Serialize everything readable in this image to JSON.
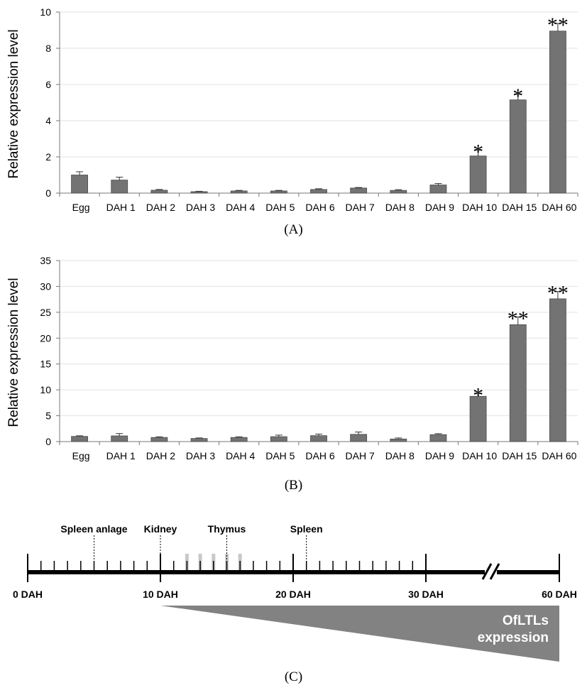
{
  "chart_data": [
    {
      "type": "bar",
      "panel_label": "(A)",
      "categories": [
        "Egg",
        "DAH 1",
        "DAH 2",
        "DAH 3",
        "DAH 4",
        "DAH 5",
        "DAH 6",
        "DAH 7",
        "DAH 8",
        "DAH 9",
        "DAH 10",
        "DAH 15",
        "DAH 60"
      ],
      "values": [
        1.0,
        0.72,
        0.16,
        0.08,
        0.12,
        0.12,
        0.2,
        0.28,
        0.15,
        0.45,
        2.05,
        5.15,
        8.95
      ],
      "errors": [
        0.18,
        0.16,
        0.04,
        0.02,
        0.03,
        0.03,
        0.04,
        0.03,
        0.04,
        0.08,
        0.32,
        0.3,
        0.42
      ],
      "significance": [
        "",
        "",
        "",
        "",
        "",
        "",
        "",
        "",
        "",
        "",
        "*",
        "*",
        "**"
      ],
      "ylabel": "Relative expression level",
      "ylim": [
        0,
        10
      ],
      "yticks": [
        0,
        2,
        4,
        6,
        8,
        10
      ],
      "color": "#737373"
    },
    {
      "type": "bar",
      "panel_label": "(B)",
      "categories": [
        "Egg",
        "DAH 1",
        "DAH 2",
        "DAH 3",
        "DAH 4",
        "DAH 5",
        "DAH 6",
        "DAH 7",
        "DAH 8",
        "DAH 9",
        "DAH 10",
        "DAH 15",
        "DAH 60"
      ],
      "values": [
        1.0,
        1.1,
        0.8,
        0.6,
        0.8,
        0.95,
        1.15,
        1.4,
        0.5,
        1.35,
        8.75,
        22.6,
        27.6
      ],
      "errors": [
        0.12,
        0.45,
        0.12,
        0.1,
        0.12,
        0.3,
        0.3,
        0.45,
        0.2,
        0.18,
        0.5,
        1.5,
        1.4
      ],
      "significance": [
        "",
        "",
        "",
        "",
        "",
        "",
        "",
        "",
        "",
        "",
        "*",
        "**",
        "**"
      ],
      "ylabel": "Relative expression level",
      "ylim": [
        0,
        35
      ],
      "yticks": [
        0,
        5,
        10,
        15,
        20,
        25,
        30,
        35
      ],
      "color": "#737373"
    }
  ],
  "timeline": {
    "panel_label": "(C)",
    "axis_labels": [
      "0 DAH",
      "10 DAH",
      "20 DAH",
      "30 DAH",
      "60 DAH"
    ],
    "axis_label_days": [
      0,
      10,
      20,
      30,
      60
    ],
    "tick_days": [
      0,
      1,
      2,
      3,
      4,
      5,
      6,
      7,
      8,
      9,
      10,
      11,
      12,
      13,
      14,
      15,
      16,
      17,
      18,
      19,
      20,
      21,
      22,
      23,
      24,
      25,
      26,
      27,
      28,
      29,
      30
    ],
    "events": [
      {
        "label": "Spleen anlage",
        "day": 5
      },
      {
        "label": "Kidney",
        "day": 10
      },
      {
        "label": "Thymus",
        "day": 15
      },
      {
        "label": "Spleen",
        "day": 21
      }
    ],
    "thymus_marker_days": [
      12,
      13,
      14,
      15,
      16
    ],
    "expression_start_day": 10,
    "expression_label_line1": "OfLTLs",
    "expression_label_line2": "expression",
    "bar_color": "#000000",
    "wedge_color": "#828282",
    "thymus_marker_color": "#c8c8c8"
  }
}
